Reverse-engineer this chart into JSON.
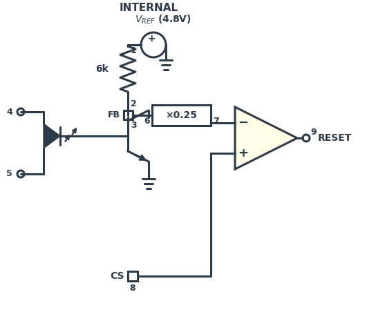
{
  "background_color": "#ffffff",
  "line_color": "#2d3a47",
  "line_width": 2.2,
  "internal_label": "INTERNAL",
  "vref_label": "V",
  "vref_sub": "REF",
  "vref_val": " (4.8V)",
  "resistor_label": "6k",
  "gain_label": "×0.25",
  "fb_label": "FB",
  "cs_label": "CS",
  "reset_label": "RESET",
  "opamp_fill": "#fefde8",
  "box_fill": "#ffffff"
}
